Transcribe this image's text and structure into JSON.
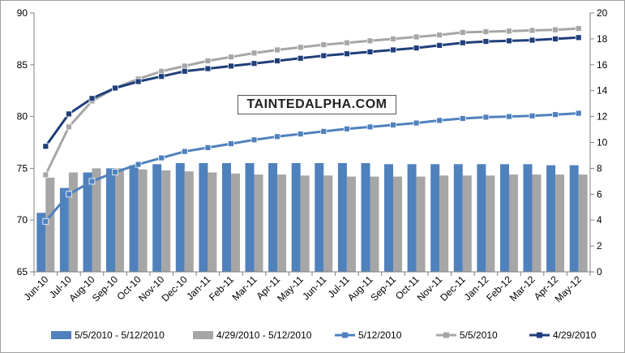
{
  "chart_data": {
    "type": "bar",
    "categories": [
      "Jun-10",
      "Jul-10",
      "Aug-10",
      "Sep-10",
      "Oct-10",
      "Nov-10",
      "Dec-10",
      "Jan-11",
      "Feb-11",
      "Mar-11",
      "Apr-11",
      "May-11",
      "Jun-11",
      "Jul-11",
      "Aug-11",
      "Sep-11",
      "Oct-11",
      "Nov-11",
      "Dec-11",
      "Jan-12",
      "Feb-12",
      "Mar-12",
      "Apr-12",
      "May-12"
    ],
    "left_axis": {
      "ylim": [
        65,
        90
      ],
      "ticks": [
        65,
        70,
        75,
        80,
        85,
        90
      ]
    },
    "right_axis": {
      "ylim": [
        0,
        20
      ],
      "ticks": [
        0,
        2,
        4,
        6,
        8,
        10,
        12,
        14,
        16,
        18,
        20
      ]
    },
    "series": [
      {
        "name": "5/5/2010 - 5/12/2010",
        "kind": "bar",
        "axis": "left",
        "color": "#4f81bd",
        "values": [
          70.7,
          73.1,
          74.6,
          75.0,
          75.3,
          75.4,
          75.5,
          75.5,
          75.5,
          75.5,
          75.5,
          75.5,
          75.5,
          75.5,
          75.5,
          75.4,
          75.4,
          75.4,
          75.4,
          75.4,
          75.4,
          75.4,
          75.3,
          75.3
        ]
      },
      {
        "name": "4/29/2010 - 5/12/2010",
        "kind": "bar",
        "axis": "left",
        "color": "#a6a6a6",
        "values": [
          74.1,
          74.6,
          75.0,
          75.0,
          74.9,
          74.8,
          74.7,
          74.6,
          74.5,
          74.4,
          74.4,
          74.3,
          74.3,
          74.2,
          74.2,
          74.2,
          74.2,
          74.3,
          74.3,
          74.3,
          74.4,
          74.4,
          74.4,
          74.4
        ]
      },
      {
        "name": "5/12/2010",
        "kind": "line",
        "axis": "right",
        "color": "#4f81bd",
        "values": [
          3.9,
          6.0,
          7.0,
          7.7,
          8.3,
          8.8,
          9.3,
          9.6,
          9.9,
          10.2,
          10.45,
          10.65,
          10.85,
          11.05,
          11.2,
          11.35,
          11.5,
          11.7,
          11.85,
          11.95,
          12.0,
          12.05,
          12.15,
          12.25
        ]
      },
      {
        "name": "5/5/2010",
        "kind": "line",
        "axis": "right",
        "color": "#a6a6a6",
        "values": [
          7.5,
          11.2,
          13.2,
          14.2,
          14.9,
          15.5,
          15.9,
          16.3,
          16.6,
          16.9,
          17.15,
          17.35,
          17.55,
          17.7,
          17.85,
          18.0,
          18.15,
          18.3,
          18.5,
          18.55,
          18.6,
          18.65,
          18.7,
          18.8
        ]
      },
      {
        "name": "4/29/2010",
        "kind": "line",
        "axis": "right",
        "color": "#1f3f7a",
        "values": [
          9.7,
          12.2,
          13.4,
          14.2,
          14.7,
          15.1,
          15.5,
          15.7,
          15.9,
          16.1,
          16.3,
          16.5,
          16.7,
          16.85,
          17.0,
          17.15,
          17.3,
          17.5,
          17.7,
          17.8,
          17.85,
          17.9,
          18.0,
          18.1
        ]
      }
    ],
    "legend": {
      "position": "bottom"
    },
    "grid": false
  },
  "watermark": {
    "text": "TAINTEDALPHA.COM"
  }
}
